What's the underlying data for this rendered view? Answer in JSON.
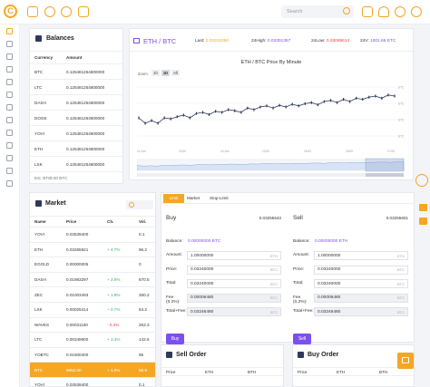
{
  "app": {
    "logo_letter": "C",
    "search_placeholder": "Search"
  },
  "ticker": {
    "pair_base": "ETH",
    "pair_quote": "BTC",
    "last_label": "Last:",
    "last_value": "0.03242050",
    "high_label": "24High:",
    "high_value": "0.03301357",
    "low_label": "24Low:",
    "low_value": "0.03089614",
    "vol_label": "24V:",
    "vol_value": "1001.66 ETC"
  },
  "balances": {
    "title": "Balances",
    "col_currency": "Currency",
    "col_amount": "Amount",
    "rows": [
      {
        "currency": "BTC",
        "amount": "0.125481254800000"
      },
      {
        "currency": "LTC",
        "amount": "0.125481254800000"
      },
      {
        "currency": "DASH",
        "amount": "0.125481254800000"
      },
      {
        "currency": "DOGE",
        "amount": "0.125481254800000"
      },
      {
        "currency": "YOVI",
        "amount": "0.125481254800000"
      },
      {
        "currency": "ETH",
        "amount": "0.125481254800000"
      },
      {
        "currency": "LSK",
        "amount": "0.125481254800000"
      }
    ],
    "est_label": "Est. BTC:",
    "est_value": "0.00 BTC"
  },
  "chart": {
    "zoom_label": "Zoom",
    "zoom_options": [
      "1h",
      "1D",
      "All"
    ],
    "y_labels": [
      "ETC",
      "ETC",
      "ETC",
      "ETC"
    ],
    "x_labels": [
      "14 Jun",
      "12:00",
      "14 Jun",
      "12:00",
      "15:00",
      "16:00",
      "17:00"
    ]
  },
  "chart_data": {
    "type": "line",
    "title": "ETH / BTC Price By Minute",
    "x_ticks": [
      "14 Jun",
      "12:00",
      "14 Jun",
      "12:00",
      "15:00",
      "16:00",
      "17:00"
    ],
    "series": [
      {
        "values": [
          0.4,
          0.3,
          0.35,
          0.3,
          0.4,
          0.38,
          0.42,
          0.45,
          0.4,
          0.48,
          0.5,
          0.46,
          0.52,
          0.5,
          0.55,
          0.53,
          0.5,
          0.58,
          0.55,
          0.6,
          0.62,
          0.58,
          0.63,
          0.6,
          0.65,
          0.62,
          0.66,
          0.68,
          0.64,
          0.7,
          0.72,
          0.68,
          0.74,
          0.7,
          0.76,
          0.74,
          0.78,
          0.8,
          0.76,
          0.82,
          0.8
        ]
      }
    ],
    "grid": true
  },
  "market": {
    "title": "Market",
    "col_name": "Name",
    "col_price": "Price",
    "col_change": "Ch.",
    "col_vol": "Vol.",
    "rows": [
      {
        "name": "YOVI",
        "price": "0.03539400",
        "change": "",
        "vol": "0.1",
        "dir": "none"
      },
      {
        "name": "ETH",
        "price": "0.03265921",
        "change": "+ 4.7%",
        "vol": "96.2",
        "dir": "up"
      },
      {
        "name": "EGOLD",
        "price": "0.00000005",
        "change": "",
        "vol": "0",
        "dir": "none"
      },
      {
        "name": "DASH",
        "price": "0.01983297",
        "change": "+ 2.8%",
        "vol": "670.5",
        "dir": "up"
      },
      {
        "name": "ZEC",
        "price": "0.01003493",
        "change": "+ 1.9%",
        "vol": "250.2",
        "dir": "up"
      },
      {
        "name": "LSK",
        "price": "0.00025414",
        "change": "+ 0.7%",
        "vol": "54.2",
        "dir": "up"
      },
      {
        "name": "WAVES",
        "price": "0.00031160",
        "change": "- 0.3%",
        "vol": "263.3",
        "dir": "down"
      },
      {
        "name": "LTC",
        "price": "0.00349900",
        "change": "+ 3.4%",
        "vol": "142.6",
        "dir": "up"
      },
      {
        "name": "YOBTC",
        "price": "0.01500400",
        "change": "",
        "vol": "95",
        "dir": "none"
      },
      {
        "name": "BTC",
        "price": "9952.00",
        "change": "+ 1.0%",
        "vol": "56.9",
        "dir": "up"
      },
      {
        "name": "YOVI",
        "price": "0.03539400",
        "change": "",
        "vol": "0.1",
        "dir": "none"
      }
    ]
  },
  "order_tabs": [
    "Limit",
    "Market",
    "Stop-Limit"
  ],
  "buy": {
    "title": "Buy",
    "balance_label": "Balance:",
    "balance_value": "0.00000000 BTC",
    "top_value": "0.03255643",
    "amount_label": "Amount:",
    "amount_value": "1.00000000",
    "amount_unit": "ETH",
    "price_label": "Price:",
    "price_value": "0.03240000",
    "price_unit": "BTC",
    "total_label": "Total:",
    "total_value": "0.03240000",
    "total_unit": "BTC",
    "fee_label": "Fee (0.2%):",
    "fee_value": "0.00006480",
    "fee_unit": "BTC",
    "totalfee_label": "Total+Fee:",
    "totalfee_value": "0.03246480",
    "totalfee_unit": "BTC",
    "button": "Buy"
  },
  "sell": {
    "title": "Sell",
    "balance_label": "Balance:",
    "balance_value": "0.00000000 ETH",
    "top_value": "0.03255601",
    "amount_label": "Amount:",
    "amount_value": "1.00000000",
    "amount_unit": "ETH",
    "price_label": "Price:",
    "price_value": "0.03240000",
    "price_unit": "BTC",
    "total_label": "Total:",
    "total_value": "0.03240000",
    "total_unit": "BTC",
    "fee_label": "Fee (0.2%):",
    "fee_value": "0.00006480",
    "fee_unit": "BTC",
    "totalfee_label": "Total+Fee:",
    "totalfee_value": "0.03246480",
    "totalfee_unit": "BTC",
    "button": "Sell"
  },
  "sell_order": {
    "title": "Sell Order",
    "col_price": "Price",
    "col_eth": "ETH",
    "col_btc": "BTH"
  },
  "buy_order": {
    "title": "Buy Order",
    "col_price": "Price",
    "col_eth": "ETH",
    "col_btc": "BTH"
  },
  "colors": {
    "accent": "#f5a623",
    "purple": "#7b4ff0",
    "green": "#2bb673",
    "red": "#e8453c"
  }
}
